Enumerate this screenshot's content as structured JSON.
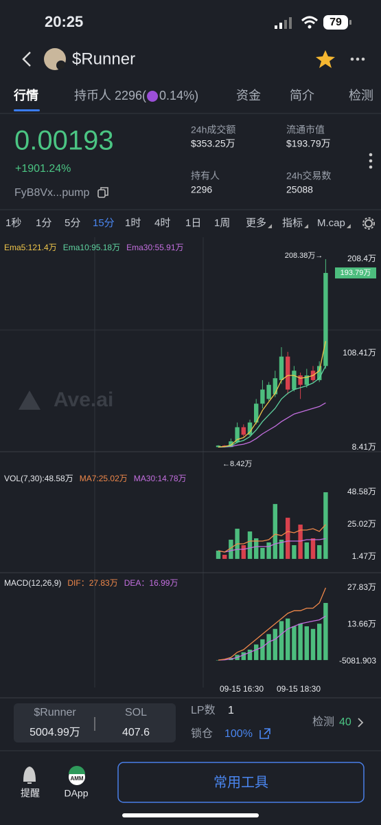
{
  "status_bar": {
    "time": "20:25",
    "battery": "79"
  },
  "header": {
    "title": "$Runner"
  },
  "tabs": [
    {
      "label": "行情",
      "active": true
    },
    {
      "label": "持币人 2296(",
      "after_icon": "0.14%)"
    },
    {
      "label": "资金"
    },
    {
      "label": "简介"
    },
    {
      "label": "检测"
    }
  ],
  "price": {
    "value": "0.00193",
    "change": "+1901.24%",
    "address": "FyB8Vx...pump"
  },
  "stats": [
    {
      "label": "24h成交额",
      "value": "$353.25万"
    },
    {
      "label": "流通市值",
      "value": "$193.79万"
    },
    {
      "label": "持有人",
      "value": "2296"
    },
    {
      "label": "24h交易数",
      "value": "25088"
    }
  ],
  "intervals": [
    {
      "label": "1秒"
    },
    {
      "label": "1分"
    },
    {
      "label": "5分"
    },
    {
      "label": "15分",
      "active": true
    },
    {
      "label": "1时"
    },
    {
      "label": "4时"
    },
    {
      "label": "1日"
    },
    {
      "label": "1周"
    },
    {
      "label": "更多",
      "dropdown": true
    },
    {
      "label": "指标",
      "dropdown": true
    },
    {
      "label": "M.cap",
      "dropdown": true
    }
  ],
  "kline": {
    "type": "candlestick",
    "watermark": "Ave.ai",
    "legend": [
      {
        "text": "Ema5:121.4万",
        "color": "#f0c64a"
      },
      {
        "text": "Ema10:95.18万",
        "color": "#5fd3a0"
      },
      {
        "text": "Ema30:55.91万",
        "color": "#c46fe0"
      }
    ],
    "up_color": "#4dbd7e",
    "down_color": "#d8414d",
    "candles": [
      {
        "open": 8.9,
        "high": 11,
        "low": 8.42,
        "close": 10.5
      },
      {
        "open": 10.5,
        "high": 11,
        "low": 8.6,
        "close": 9
      },
      {
        "open": 9,
        "high": 18,
        "low": 8.8,
        "close": 15
      },
      {
        "open": 14,
        "high": 35,
        "low": 13,
        "close": 30
      },
      {
        "open": 30,
        "high": 33,
        "low": 20,
        "close": 22
      },
      {
        "open": 22,
        "high": 38,
        "low": 21,
        "close": 35
      },
      {
        "open": 35,
        "high": 60,
        "low": 33,
        "close": 55
      },
      {
        "open": 55,
        "high": 80,
        "low": 50,
        "close": 70
      },
      {
        "open": 60,
        "high": 78,
        "low": 58,
        "close": 75
      },
      {
        "open": 65,
        "high": 90,
        "low": 62,
        "close": 82
      },
      {
        "open": 80,
        "high": 115,
        "low": 76,
        "close": 105
      },
      {
        "open": 105,
        "high": 110,
        "low": 65,
        "close": 70
      },
      {
        "open": 70,
        "high": 95,
        "low": 68,
        "close": 90
      },
      {
        "open": 85,
        "high": 88,
        "low": 60,
        "close": 75
      },
      {
        "open": 75,
        "high": 92,
        "low": 72,
        "close": 85
      },
      {
        "open": 90,
        "high": 95,
        "low": 78,
        "close": 80
      },
      {
        "open": 80,
        "high": 100,
        "low": 78,
        "close": 95
      },
      {
        "open": 95,
        "high": 208.38,
        "low": 92,
        "close": 193.79
      }
    ],
    "ema5": [
      9,
      9.5,
      11,
      17,
      19,
      25,
      35,
      48,
      57,
      66,
      80,
      85,
      85,
      82,
      83,
      85,
      90,
      121.4
    ],
    "ema10": [
      9,
      9.3,
      10,
      14,
      16,
      20,
      27,
      36,
      43,
      50,
      60,
      66,
      70,
      72,
      74,
      77,
      82,
      95.18
    ],
    "ema30": [
      9,
      9.1,
      9.5,
      11,
      12,
      14,
      18,
      23,
      27,
      31,
      36,
      40,
      44,
      46,
      48,
      50,
      52,
      55.91
    ],
    "yticks": [
      {
        "value": 8.41,
        "label": "8.41万"
      },
      {
        "value": 108.41,
        "label": "108.41万"
      },
      {
        "value": 208.4,
        "label": "208.4万"
      }
    ],
    "price_tag": {
      "value": 193.79,
      "label": "193.79万"
    },
    "high_label": "208.38万→",
    "low_label": "←8.42万",
    "x_labels": [
      "09-15 16:30",
      "09-15 18:30"
    ]
  },
  "volume": {
    "legend": [
      {
        "text": "VOL(7,30):48.58万",
        "color": "#e8eaee"
      },
      {
        "text": "MA7:25.02万",
        "color": "#f0884a"
      },
      {
        "text": "MA30:14.78万",
        "color": "#c46fe0"
      }
    ],
    "values": [
      6,
      3,
      14,
      22,
      10,
      20,
      15,
      8,
      12,
      40,
      14,
      30,
      10,
      25,
      12,
      15,
      10,
      48.58
    ],
    "ma7": [
      6,
      5,
      8,
      11,
      11,
      13,
      13,
      13,
      14,
      18,
      17,
      20,
      19,
      21,
      21,
      22,
      20,
      25.02
    ],
    "ma30": [
      6,
      5,
      6,
      7,
      7,
      8,
      9,
      9,
      9,
      11,
      12,
      13,
      13,
      13,
      14,
      14,
      14,
      14.78
    ],
    "yticks": [
      {
        "value": 1.47,
        "label": "1.47万"
      },
      {
        "value": 25.02,
        "label": "25.02万"
      },
      {
        "value": 48.58,
        "label": "48.58万"
      }
    ]
  },
  "macd": {
    "legend": [
      {
        "text": "MACD(12,26,9)",
        "color": "#e8eaee"
      },
      {
        "text": "DIF：27.83万",
        "color": "#f0884a"
      },
      {
        "text": "DEA：16.99万",
        "color": "#c46fe0"
      }
    ],
    "hist": [
      0,
      0.2,
      0.8,
      2,
      3,
      4,
      6,
      8,
      10,
      12,
      15,
      16,
      13,
      14,
      13,
      12,
      14,
      22
    ],
    "dif": [
      0,
      0.3,
      1,
      3,
      4,
      6,
      8,
      10,
      12,
      14,
      16,
      18,
      19,
      19,
      20,
      20,
      22,
      27.83
    ],
    "dea": [
      0,
      0.1,
      0.4,
      1,
      2,
      3,
      4,
      5,
      7,
      8,
      10,
      12,
      13,
      14,
      14.5,
      15,
      15.5,
      16.99
    ],
    "yticks": [
      {
        "value": -0.5081903,
        "label": "-5081.903"
      },
      {
        "value": 13.66,
        "label": "13.66万"
      },
      {
        "value": 27.83,
        "label": "27.83万"
      }
    ]
  },
  "footer": {
    "pair": [
      {
        "name": "$Runner",
        "value": "5004.99万"
      },
      {
        "name": "SOL",
        "value": "407.6"
      }
    ],
    "lp_label": "LP数",
    "lp_value": "1",
    "lock_label": "锁仓",
    "lock_value": "100%",
    "check_label": "检测",
    "check_value": "40"
  },
  "nav": {
    "alert": "提醒",
    "amm": "AMM",
    "dapp": "DApp",
    "button": "常用工具"
  }
}
